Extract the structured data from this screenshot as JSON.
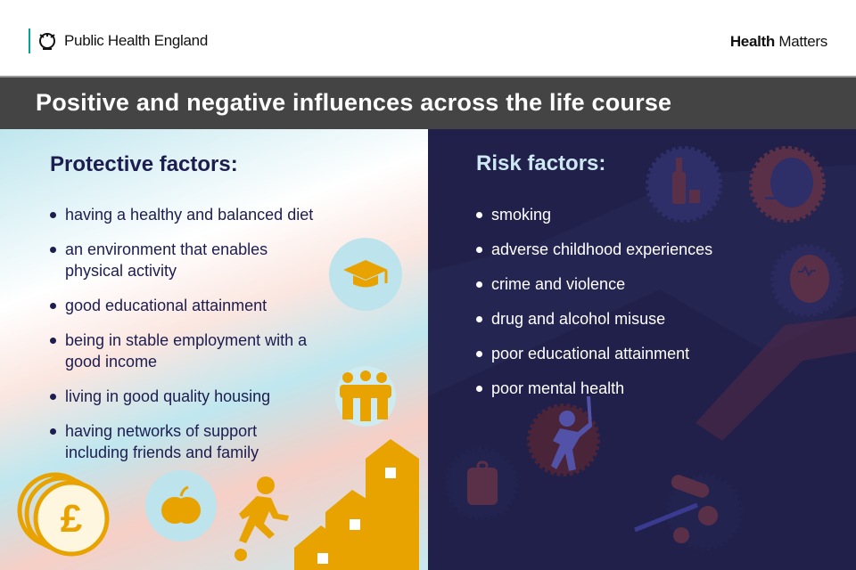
{
  "header": {
    "org": "Public Health England",
    "brand_bold": "Health",
    "brand_rest": " Matters"
  },
  "title": "Positive and negative influences across the life course",
  "protective": {
    "heading": "Protective factors:",
    "items": [
      {
        "lines": [
          "having a healthy and balanced diet"
        ]
      },
      {
        "lines": [
          "an environment that enables",
          "physical activity"
        ]
      },
      {
        "lines": [
          "good educational attainment"
        ]
      },
      {
        "lines": [
          "being in stable employment with a",
          "good income"
        ]
      },
      {
        "lines": [
          "living in good quality housing"
        ]
      },
      {
        "lines": [
          "having networks of support",
          "including friends and family"
        ]
      }
    ],
    "icons": [
      "graduation-cap-icon",
      "family-icon",
      "pound-coins-icon",
      "apple-icon",
      "runner-icon",
      "houses-icon"
    ]
  },
  "risk": {
    "heading": "Risk factors:",
    "items": [
      "smoking",
      "adverse childhood experiences",
      "crime and violence",
      "drug and alcohol misuse",
      "poor educational attainment",
      "poor mental health"
    ],
    "icons": [
      "alcohol-bottle-icon",
      "smoking-head-icon",
      "violence-icon",
      "backpack-icon",
      "pills-syringe-icon",
      "mental-health-head-icon"
    ]
  },
  "colors": {
    "title_bar": "#444444",
    "left_text": "#1d1d4f",
    "right_bg": "#20204a",
    "icon_orange": "#e8a300",
    "accent_teal": "#00a499"
  }
}
